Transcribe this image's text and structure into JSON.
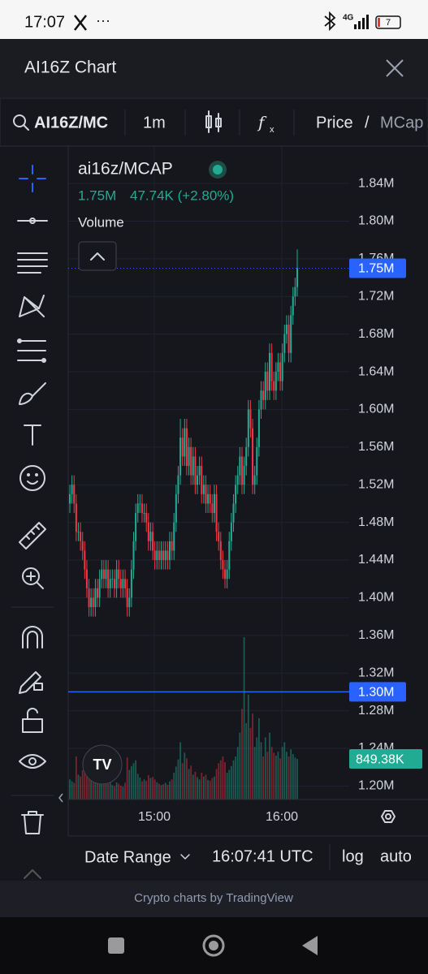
{
  "status_bar": {
    "time": "17:07",
    "network": "4G",
    "battery": "7"
  },
  "header": {
    "title": "AI16Z Chart"
  },
  "toolbar": {
    "symbol": "AI16Z/MC",
    "interval": "1m",
    "price": "Price",
    "separator": "/",
    "mcap": "MCap"
  },
  "legend": {
    "symbol": "ai16z/MCAP",
    "price": "1.75M",
    "change": "47.74K (+2.80%)",
    "volume": "Volume"
  },
  "chart_data": {
    "type": "candlestick",
    "open": [
      1.5,
      1.51,
      1.52,
      1.5,
      1.47,
      1.47,
      1.46,
      1.45,
      1.43,
      1.41,
      1.39,
      1.4,
      1.39,
      1.41,
      1.4,
      1.42,
      1.43,
      1.42,
      1.43,
      1.41,
      1.42,
      1.42,
      1.41,
      1.43,
      1.42,
      1.41,
      1.42,
      1.41,
      1.39,
      1.4,
      1.43,
      1.46,
      1.49,
      1.5,
      1.5,
      1.49,
      1.49,
      1.48,
      1.46,
      1.47,
      1.45,
      1.44,
      1.45,
      1.44,
      1.45,
      1.44,
      1.45,
      1.44,
      1.46,
      1.45,
      1.48,
      1.51,
      1.53,
      1.57,
      1.55,
      1.58,
      1.54,
      1.56,
      1.53,
      1.55,
      1.52,
      1.53,
      1.54,
      1.51,
      1.52,
      1.5,
      1.51,
      1.5,
      1.49,
      1.51,
      1.47,
      1.46,
      1.44,
      1.43,
      1.42,
      1.43,
      1.46,
      1.48,
      1.5,
      1.52,
      1.53,
      1.55,
      1.52,
      1.54,
      1.56,
      1.6,
      1.58,
      1.52,
      1.53,
      1.56,
      1.6,
      1.62,
      1.61,
      1.64,
      1.62,
      1.66,
      1.63,
      1.62,
      1.64,
      1.65,
      1.63,
      1.66,
      1.68,
      1.69,
      1.66,
      1.7,
      1.72,
      1.73
    ],
    "high": [
      1.52,
      1.53,
      1.53,
      1.51,
      1.48,
      1.48,
      1.47,
      1.46,
      1.44,
      1.42,
      1.41,
      1.41,
      1.42,
      1.42,
      1.43,
      1.44,
      1.44,
      1.44,
      1.44,
      1.43,
      1.43,
      1.43,
      1.44,
      1.44,
      1.43,
      1.43,
      1.43,
      1.42,
      1.41,
      1.44,
      1.47,
      1.5,
      1.51,
      1.51,
      1.51,
      1.5,
      1.5,
      1.49,
      1.48,
      1.48,
      1.46,
      1.46,
      1.46,
      1.46,
      1.46,
      1.46,
      1.46,
      1.47,
      1.47,
      1.49,
      1.52,
      1.54,
      1.59,
      1.58,
      1.59,
      1.59,
      1.57,
      1.57,
      1.56,
      1.56,
      1.54,
      1.55,
      1.55,
      1.53,
      1.53,
      1.52,
      1.52,
      1.51,
      1.52,
      1.52,
      1.48,
      1.47,
      1.45,
      1.44,
      1.44,
      1.47,
      1.49,
      1.51,
      1.53,
      1.54,
      1.56,
      1.56,
      1.55,
      1.57,
      1.61,
      1.61,
      1.59,
      1.54,
      1.57,
      1.61,
      1.63,
      1.63,
      1.65,
      1.65,
      1.67,
      1.67,
      1.64,
      1.65,
      1.66,
      1.66,
      1.67,
      1.69,
      1.7,
      1.7,
      1.71,
      1.73,
      1.74,
      1.77
    ],
    "low": [
      1.49,
      1.5,
      1.49,
      1.46,
      1.46,
      1.45,
      1.44,
      1.42,
      1.4,
      1.38,
      1.38,
      1.38,
      1.38,
      1.39,
      1.39,
      1.41,
      1.41,
      1.41,
      1.4,
      1.4,
      1.41,
      1.4,
      1.4,
      1.41,
      1.4,
      1.4,
      1.4,
      1.38,
      1.38,
      1.39,
      1.42,
      1.45,
      1.48,
      1.49,
      1.48,
      1.48,
      1.47,
      1.45,
      1.45,
      1.44,
      1.43,
      1.43,
      1.43,
      1.43,
      1.43,
      1.43,
      1.43,
      1.43,
      1.44,
      1.44,
      1.47,
      1.5,
      1.52,
      1.54,
      1.54,
      1.53,
      1.53,
      1.52,
      1.52,
      1.51,
      1.51,
      1.52,
      1.5,
      1.5,
      1.49,
      1.49,
      1.49,
      1.48,
      1.48,
      1.46,
      1.45,
      1.43,
      1.42,
      1.41,
      1.41,
      1.42,
      1.45,
      1.47,
      1.49,
      1.51,
      1.52,
      1.51,
      1.51,
      1.53,
      1.55,
      1.57,
      1.51,
      1.51,
      1.52,
      1.55,
      1.59,
      1.6,
      1.6,
      1.61,
      1.61,
      1.62,
      1.61,
      1.61,
      1.63,
      1.62,
      1.62,
      1.65,
      1.67,
      1.65,
      1.65,
      1.69,
      1.71,
      1.72
    ],
    "close": [
      1.51,
      1.52,
      1.5,
      1.47,
      1.47,
      1.46,
      1.45,
      1.43,
      1.41,
      1.39,
      1.4,
      1.39,
      1.41,
      1.4,
      1.42,
      1.43,
      1.42,
      1.43,
      1.41,
      1.42,
      1.42,
      1.41,
      1.43,
      1.42,
      1.41,
      1.42,
      1.41,
      1.39,
      1.4,
      1.43,
      1.46,
      1.49,
      1.5,
      1.5,
      1.49,
      1.49,
      1.48,
      1.46,
      1.47,
      1.45,
      1.44,
      1.45,
      1.44,
      1.45,
      1.44,
      1.45,
      1.44,
      1.46,
      1.45,
      1.48,
      1.51,
      1.53,
      1.57,
      1.55,
      1.58,
      1.54,
      1.56,
      1.53,
      1.55,
      1.52,
      1.53,
      1.54,
      1.51,
      1.52,
      1.5,
      1.51,
      1.5,
      1.49,
      1.51,
      1.47,
      1.46,
      1.44,
      1.43,
      1.42,
      1.43,
      1.46,
      1.48,
      1.5,
      1.52,
      1.53,
      1.55,
      1.52,
      1.54,
      1.56,
      1.6,
      1.58,
      1.52,
      1.53,
      1.56,
      1.6,
      1.62,
      1.61,
      1.64,
      1.62,
      1.66,
      1.63,
      1.62,
      1.64,
      1.65,
      1.63,
      1.66,
      1.68,
      1.69,
      1.66,
      1.7,
      1.72,
      1.73,
      1.75
    ],
    "volume": [
      420,
      380,
      350,
      900,
      520,
      480,
      610,
      700,
      650,
      820,
      540,
      430,
      380,
      460,
      520,
      610,
      390,
      350,
      330,
      410,
      300,
      280,
      360,
      330,
      290,
      270,
      350,
      880,
      620,
      700,
      760,
      820,
      540,
      460,
      380,
      420,
      390,
      510,
      450,
      470,
      420,
      360,
      330,
      300,
      320,
      350,
      310,
      380,
      420,
      560,
      690,
      840,
      1200,
      760,
      980,
      860,
      640,
      710,
      520,
      580,
      470,
      420,
      560,
      480,
      520,
      410,
      390,
      450,
      480,
      640,
      760,
      820,
      900,
      780,
      560,
      620,
      700,
      820,
      900,
      1100,
      1400,
      1900,
      3400,
      1600,
      2200,
      1500,
      1800,
      1100,
      1300,
      1700,
      1200,
      900,
      1300,
      1000,
      1400,
      1100,
      980,
      920,
      1000,
      860,
      1100,
      1200,
      1000,
      900,
      1050,
      950,
      880,
      849.38
    ],
    "up_color": "#22ab94",
    "down_color": "#f23645",
    "ylim": [
      1.1857,
      1.8797
    ],
    "yticks": [
      {
        "value": 1.84,
        "label": "1.84M"
      },
      {
        "value": 1.8,
        "label": "1.80M"
      },
      {
        "value": 1.76,
        "label": "1.76M"
      },
      {
        "value": 1.72,
        "label": "1.72M"
      },
      {
        "value": 1.68,
        "label": "1.68M"
      },
      {
        "value": 1.64,
        "label": "1.64M"
      },
      {
        "value": 1.6,
        "label": "1.60M"
      },
      {
        "value": 1.56,
        "label": "1.56M"
      },
      {
        "value": 1.52,
        "label": "1.52M"
      },
      {
        "value": 1.48,
        "label": "1.48M"
      },
      {
        "value": 1.44,
        "label": "1.44M"
      },
      {
        "value": 1.4,
        "label": "1.40M"
      },
      {
        "value": 1.36,
        "label": "1.36M"
      },
      {
        "value": 1.32,
        "label": "1.32M"
      },
      {
        "value": 1.28,
        "label": "1.28M"
      },
      {
        "value": 1.24,
        "label": "1.24M"
      },
      {
        "value": 1.2,
        "label": "1.20M"
      }
    ],
    "y2lim": [
      0,
      13685
    ],
    "xtick_labels": [
      "15:00",
      "16:00"
    ],
    "last_price": {
      "value": 1.75,
      "label": "1.75M"
    },
    "price_line": {
      "value": 1.3,
      "label": "1.30M"
    },
    "last_volume": {
      "value": 849.38,
      "label": "849.38K"
    },
    "grid": true
  },
  "bottom_bar": {
    "date_range": "Date Range",
    "time": "16:07:41 UTC",
    "log": "log",
    "auto": "auto"
  },
  "footer": "Crypto charts by TradingView"
}
